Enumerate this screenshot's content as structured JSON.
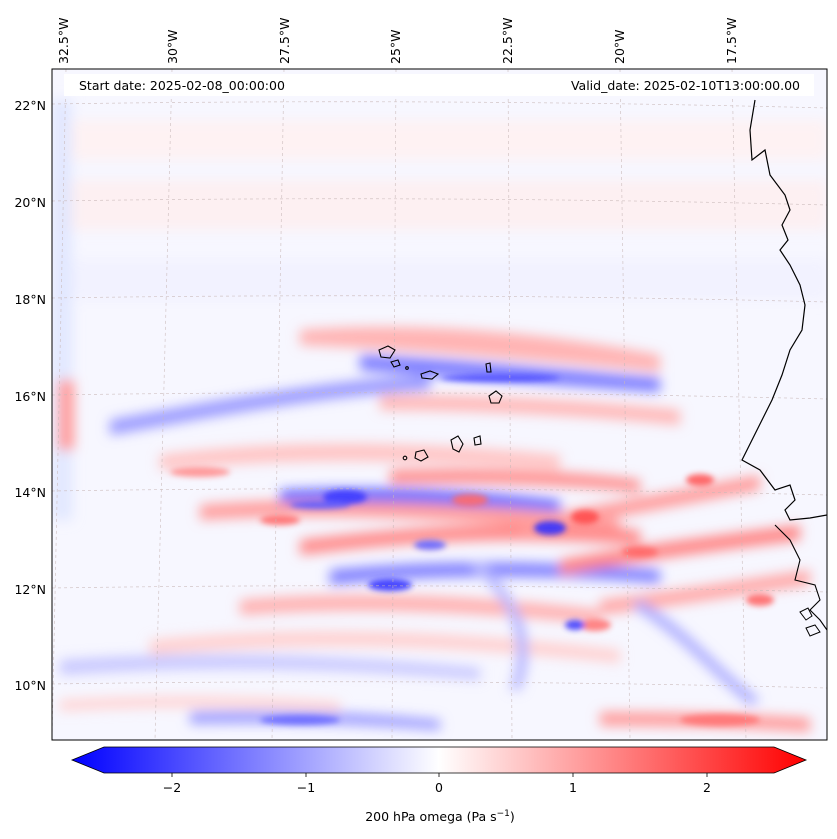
{
  "header": {
    "start_date": "Start date: 2025-02-08_00:00:00",
    "valid_date": "Valid_date: 2025-02-10T13:00:00.00"
  },
  "map": {
    "lon_labels": [
      "32.5°W",
      "30°W",
      "27.5°W",
      "25°W",
      "22.5°W",
      "20°W",
      "17.5°W"
    ],
    "lat_labels": [
      "22°N",
      "20°N",
      "18°N",
      "16°N",
      "14°N",
      "12°N",
      "10°N"
    ],
    "lon_values": [
      -32.5,
      -30,
      -27.5,
      -25,
      -22.5,
      -20,
      -17.5
    ],
    "lat_values": [
      22,
      20,
      18,
      16,
      14,
      12,
      10
    ],
    "field": "200 hPa omega",
    "islands": "Cape Verde"
  },
  "colorbar": {
    "ticks": [
      "−2",
      "−1",
      "0",
      "1",
      "2"
    ],
    "tick_values": [
      -2,
      -1,
      0,
      1,
      2
    ],
    "range": [
      -2.7,
      2.7
    ],
    "label_main": "200 hPa omega (Pa s",
    "label_sup": "−1",
    "label_end": ")",
    "colors": {
      "negative": "#0000ff",
      "zero": "#ffffff",
      "positive": "#ff0000"
    }
  }
}
